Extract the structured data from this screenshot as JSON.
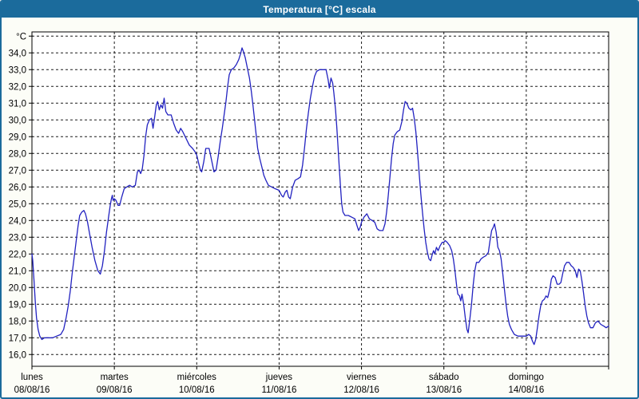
{
  "window": {
    "title": "Temperatura [°C] escala"
  },
  "colors": {
    "frame_border": "#1B6B9C",
    "title_bar_bg": "#1B6B9C",
    "title_text": "#FFFFFF",
    "canvas_bg": "#FCFDF7",
    "plot_bg": "#FFFFFF",
    "axis_frame": "#000000",
    "gridline": "#1A1A1A",
    "tick_label_color": "#000000",
    "series_line": "#2222C0"
  },
  "chart_data": {
    "type": "line",
    "title": "Temperatura [°C] escala",
    "ylabel": "°C",
    "xlabel": "",
    "grid": "dashed",
    "legend": "none",
    "y_axis": {
      "unit_label": "°C",
      "min_frame": 15.3,
      "max_frame": 35.25,
      "tick_step": 1.0,
      "tick_values": [
        35,
        34,
        33,
        32,
        31,
        30,
        29,
        28,
        27,
        26,
        25,
        24,
        23,
        22,
        21,
        20,
        19,
        18,
        17,
        16
      ],
      "tick_labels": [
        "°C",
        "34,0",
        "33,0",
        "32,0",
        "31,0",
        "30,0",
        "29,0",
        "28,0",
        "27,0",
        "26,0",
        "25,0",
        "24,0",
        "23,0",
        "22,0",
        "21,0",
        "20,0",
        "19,0",
        "18,0",
        "17,0",
        "16,0"
      ]
    },
    "x_axis": {
      "range_days": [
        0,
        7
      ],
      "day_labels": [
        {
          "name": "lunes",
          "date": "08/08/16"
        },
        {
          "name": "martes",
          "date": "09/08/16"
        },
        {
          "name": "miércoles",
          "date": "10/08/16"
        },
        {
          "name": "jueves",
          "date": "11/08/16"
        },
        {
          "name": "viernes",
          "date": "12/08/16"
        },
        {
          "name": "sábado",
          "date": "13/08/16"
        },
        {
          "name": "domingo",
          "date": "14/08/16"
        }
      ]
    },
    "series": [
      {
        "name": "Temperatura",
        "color": "#2222C0",
        "points_day_temp": [
          [
            0.0,
            22.0
          ],
          [
            0.01,
            21.6
          ],
          [
            0.025,
            20.4
          ],
          [
            0.04,
            19.2
          ],
          [
            0.055,
            18.2
          ],
          [
            0.075,
            17.5
          ],
          [
            0.095,
            17.1
          ],
          [
            0.12,
            16.9
          ],
          [
            0.15,
            17.0
          ],
          [
            0.2,
            17.0
          ],
          [
            0.25,
            17.0
          ],
          [
            0.3,
            17.1
          ],
          [
            0.35,
            17.2
          ],
          [
            0.385,
            17.5
          ],
          [
            0.415,
            18.2
          ],
          [
            0.44,
            18.9
          ],
          [
            0.465,
            19.8
          ],
          [
            0.49,
            20.9
          ],
          [
            0.515,
            21.9
          ],
          [
            0.54,
            22.9
          ],
          [
            0.56,
            23.7
          ],
          [
            0.58,
            24.3
          ],
          [
            0.605,
            24.5
          ],
          [
            0.63,
            24.6
          ],
          [
            0.65,
            24.4
          ],
          [
            0.675,
            23.9
          ],
          [
            0.7,
            23.2
          ],
          [
            0.73,
            22.4
          ],
          [
            0.765,
            21.6
          ],
          [
            0.8,
            21.0
          ],
          [
            0.83,
            20.8
          ],
          [
            0.855,
            21.3
          ],
          [
            0.88,
            22.2
          ],
          [
            0.905,
            23.3
          ],
          [
            0.93,
            24.2
          ],
          [
            0.95,
            24.9
          ],
          [
            0.965,
            25.3
          ],
          [
            0.975,
            25.5
          ],
          [
            0.985,
            25.2
          ],
          [
            1.0,
            25.3
          ],
          [
            1.02,
            25.2
          ],
          [
            1.045,
            24.9
          ],
          [
            1.065,
            24.9
          ],
          [
            1.09,
            25.4
          ],
          [
            1.12,
            25.9
          ],
          [
            1.15,
            26.0
          ],
          [
            1.185,
            26.1
          ],
          [
            1.22,
            26.0
          ],
          [
            1.255,
            26.1
          ],
          [
            1.28,
            26.9
          ],
          [
            1.3,
            27.0
          ],
          [
            1.32,
            26.8
          ],
          [
            1.34,
            27.1
          ],
          [
            1.36,
            27.9
          ],
          [
            1.38,
            29.0
          ],
          [
            1.4,
            29.7
          ],
          [
            1.425,
            30.0
          ],
          [
            1.45,
            30.1
          ],
          [
            1.47,
            29.5
          ],
          [
            1.49,
            30.2
          ],
          [
            1.51,
            30.9
          ],
          [
            1.525,
            31.1
          ],
          [
            1.545,
            30.6
          ],
          [
            1.565,
            30.9
          ],
          [
            1.585,
            30.7
          ],
          [
            1.605,
            31.3
          ],
          [
            1.625,
            30.5
          ],
          [
            1.65,
            30.3
          ],
          [
            1.69,
            30.3
          ],
          [
            1.72,
            29.8
          ],
          [
            1.75,
            29.4
          ],
          [
            1.78,
            29.2
          ],
          [
            1.805,
            29.5
          ],
          [
            1.83,
            29.3
          ],
          [
            1.87,
            28.9
          ],
          [
            1.91,
            28.5
          ],
          [
            1.95,
            28.3
          ],
          [
            1.98,
            28.1
          ],
          [
            2.0,
            27.9
          ],
          [
            2.02,
            27.5
          ],
          [
            2.045,
            27.0
          ],
          [
            2.06,
            26.9
          ],
          [
            2.085,
            27.5
          ],
          [
            2.11,
            28.3
          ],
          [
            2.15,
            28.3
          ],
          [
            2.18,
            27.6
          ],
          [
            2.21,
            26.9
          ],
          [
            2.235,
            27.0
          ],
          [
            2.26,
            27.8
          ],
          [
            2.285,
            28.7
          ],
          [
            2.31,
            29.5
          ],
          [
            2.33,
            30.2
          ],
          [
            2.355,
            31.1
          ],
          [
            2.375,
            32.0
          ],
          [
            2.395,
            32.7
          ],
          [
            2.42,
            33.0
          ],
          [
            2.45,
            33.1
          ],
          [
            2.48,
            33.3
          ],
          [
            2.51,
            33.6
          ],
          [
            2.535,
            34.0
          ],
          [
            2.55,
            34.3
          ],
          [
            2.565,
            34.1
          ],
          [
            2.59,
            33.7
          ],
          [
            2.615,
            33.1
          ],
          [
            2.64,
            32.5
          ],
          [
            2.66,
            31.8
          ],
          [
            2.68,
            31.0
          ],
          [
            2.7,
            30.1
          ],
          [
            2.72,
            29.2
          ],
          [
            2.74,
            28.3
          ],
          [
            2.765,
            27.7
          ],
          [
            2.79,
            27.2
          ],
          [
            2.815,
            26.7
          ],
          [
            2.84,
            26.4
          ],
          [
            2.87,
            26.1
          ],
          [
            2.91,
            26.0
          ],
          [
            2.95,
            25.9
          ],
          [
            3.0,
            25.8
          ],
          [
            3.03,
            25.5
          ],
          [
            3.05,
            25.4
          ],
          [
            3.075,
            25.7
          ],
          [
            3.095,
            25.8
          ],
          [
            3.115,
            25.4
          ],
          [
            3.135,
            25.3
          ],
          [
            3.165,
            26.0
          ],
          [
            3.195,
            26.4
          ],
          [
            3.23,
            26.5
          ],
          [
            3.26,
            26.6
          ],
          [
            3.285,
            27.3
          ],
          [
            3.31,
            28.4
          ],
          [
            3.33,
            29.4
          ],
          [
            3.355,
            30.4
          ],
          [
            3.38,
            31.3
          ],
          [
            3.405,
            32.0
          ],
          [
            3.43,
            32.6
          ],
          [
            3.455,
            32.9
          ],
          [
            3.49,
            33.0
          ],
          [
            3.53,
            33.0
          ],
          [
            3.57,
            33.0
          ],
          [
            3.595,
            32.4
          ],
          [
            3.61,
            31.9
          ],
          [
            3.63,
            32.5
          ],
          [
            3.65,
            32.2
          ],
          [
            3.665,
            31.6
          ],
          [
            3.685,
            30.6
          ],
          [
            3.7,
            29.6
          ],
          [
            3.715,
            28.4
          ],
          [
            3.73,
            27.2
          ],
          [
            3.745,
            26.0
          ],
          [
            3.76,
            25.0
          ],
          [
            3.775,
            24.5
          ],
          [
            3.8,
            24.3
          ],
          [
            3.84,
            24.3
          ],
          [
            3.88,
            24.2
          ],
          [
            3.92,
            24.1
          ],
          [
            3.945,
            23.7
          ],
          [
            3.965,
            23.4
          ],
          [
            3.985,
            23.6
          ],
          [
            4.0,
            23.9
          ],
          [
            4.03,
            24.2
          ],
          [
            4.065,
            24.4
          ],
          [
            4.095,
            24.1
          ],
          [
            4.13,
            24.0
          ],
          [
            4.16,
            23.9
          ],
          [
            4.19,
            23.5
          ],
          [
            4.22,
            23.4
          ],
          [
            4.26,
            23.4
          ],
          [
            4.285,
            23.8
          ],
          [
            4.305,
            24.5
          ],
          [
            4.325,
            25.5
          ],
          [
            4.345,
            26.6
          ],
          [
            4.365,
            27.7
          ],
          [
            4.385,
            28.6
          ],
          [
            4.405,
            29.1
          ],
          [
            4.435,
            29.3
          ],
          [
            4.465,
            29.4
          ],
          [
            4.49,
            29.9
          ],
          [
            4.51,
            30.6
          ],
          [
            4.53,
            31.1
          ],
          [
            4.55,
            31.0
          ],
          [
            4.575,
            30.7
          ],
          [
            4.6,
            30.6
          ],
          [
            4.62,
            30.7
          ],
          [
            4.64,
            30.1
          ],
          [
            4.66,
            29.3
          ],
          [
            4.675,
            28.4
          ],
          [
            4.69,
            27.5
          ],
          [
            4.705,
            26.5
          ],
          [
            4.72,
            25.6
          ],
          [
            4.74,
            24.5
          ],
          [
            4.76,
            23.5
          ],
          [
            4.78,
            22.7
          ],
          [
            4.8,
            22.1
          ],
          [
            4.82,
            21.7
          ],
          [
            4.84,
            21.6
          ],
          [
            4.86,
            22.0
          ],
          [
            4.875,
            22.2
          ],
          [
            4.89,
            22.0
          ],
          [
            4.91,
            22.4
          ],
          [
            4.93,
            22.2
          ],
          [
            4.955,
            22.5
          ],
          [
            4.98,
            22.7
          ],
          [
            5.0,
            22.7
          ],
          [
            5.015,
            22.8
          ],
          [
            5.04,
            22.7
          ],
          [
            5.07,
            22.5
          ],
          [
            5.095,
            22.2
          ],
          [
            5.115,
            21.7
          ],
          [
            5.135,
            21.0
          ],
          [
            5.155,
            20.1
          ],
          [
            5.17,
            19.6
          ],
          [
            5.19,
            19.5
          ],
          [
            5.205,
            19.2
          ],
          [
            5.22,
            19.6
          ],
          [
            5.24,
            19.0
          ],
          [
            5.26,
            18.2
          ],
          [
            5.28,
            17.5
          ],
          [
            5.295,
            17.3
          ],
          [
            5.315,
            18.1
          ],
          [
            5.335,
            19.0
          ],
          [
            5.355,
            20.1
          ],
          [
            5.375,
            21.0
          ],
          [
            5.395,
            21.5
          ],
          [
            5.425,
            21.5
          ],
          [
            5.45,
            21.7
          ],
          [
            5.475,
            21.8
          ],
          [
            5.51,
            21.9
          ],
          [
            5.54,
            22.1
          ],
          [
            5.56,
            22.8
          ],
          [
            5.58,
            23.4
          ],
          [
            5.6,
            23.6
          ],
          [
            5.615,
            23.8
          ],
          [
            5.635,
            23.3
          ],
          [
            5.655,
            22.4
          ],
          [
            5.675,
            22.2
          ],
          [
            5.695,
            21.7
          ],
          [
            5.715,
            20.8
          ],
          [
            5.735,
            19.9
          ],
          [
            5.755,
            19.0
          ],
          [
            5.775,
            18.3
          ],
          [
            5.795,
            17.8
          ],
          [
            5.82,
            17.5
          ],
          [
            5.855,
            17.2
          ],
          [
            5.9,
            17.1
          ],
          [
            5.95,
            17.1
          ],
          [
            6.0,
            17.1
          ],
          [
            6.03,
            17.2
          ],
          [
            6.055,
            17.1
          ],
          [
            6.075,
            16.8
          ],
          [
            6.095,
            16.6
          ],
          [
            6.115,
            16.9
          ],
          [
            6.135,
            17.6
          ],
          [
            6.155,
            18.3
          ],
          [
            6.175,
            18.9
          ],
          [
            6.195,
            19.2
          ],
          [
            6.22,
            19.3
          ],
          [
            6.24,
            19.5
          ],
          [
            6.26,
            19.4
          ],
          [
            6.285,
            19.9
          ],
          [
            6.305,
            20.5
          ],
          [
            6.325,
            20.7
          ],
          [
            6.35,
            20.6
          ],
          [
            6.375,
            20.2
          ],
          [
            6.4,
            20.2
          ],
          [
            6.42,
            20.3
          ],
          [
            6.445,
            20.9
          ],
          [
            6.465,
            21.3
          ],
          [
            6.49,
            21.5
          ],
          [
            6.52,
            21.5
          ],
          [
            6.545,
            21.3
          ],
          [
            6.57,
            21.2
          ],
          [
            6.595,
            21.0
          ],
          [
            6.615,
            20.6
          ],
          [
            6.635,
            21.1
          ],
          [
            6.655,
            21.0
          ],
          [
            6.675,
            20.4
          ],
          [
            6.695,
            19.7
          ],
          [
            6.715,
            18.9
          ],
          [
            6.735,
            18.3
          ],
          [
            6.755,
            17.9
          ],
          [
            6.78,
            17.6
          ],
          [
            6.81,
            17.6
          ],
          [
            6.84,
            17.9
          ],
          [
            6.87,
            18.0
          ],
          [
            6.905,
            17.8
          ],
          [
            6.94,
            17.7
          ],
          [
            6.97,
            17.6
          ],
          [
            7.0,
            17.7
          ]
        ]
      }
    ]
  }
}
